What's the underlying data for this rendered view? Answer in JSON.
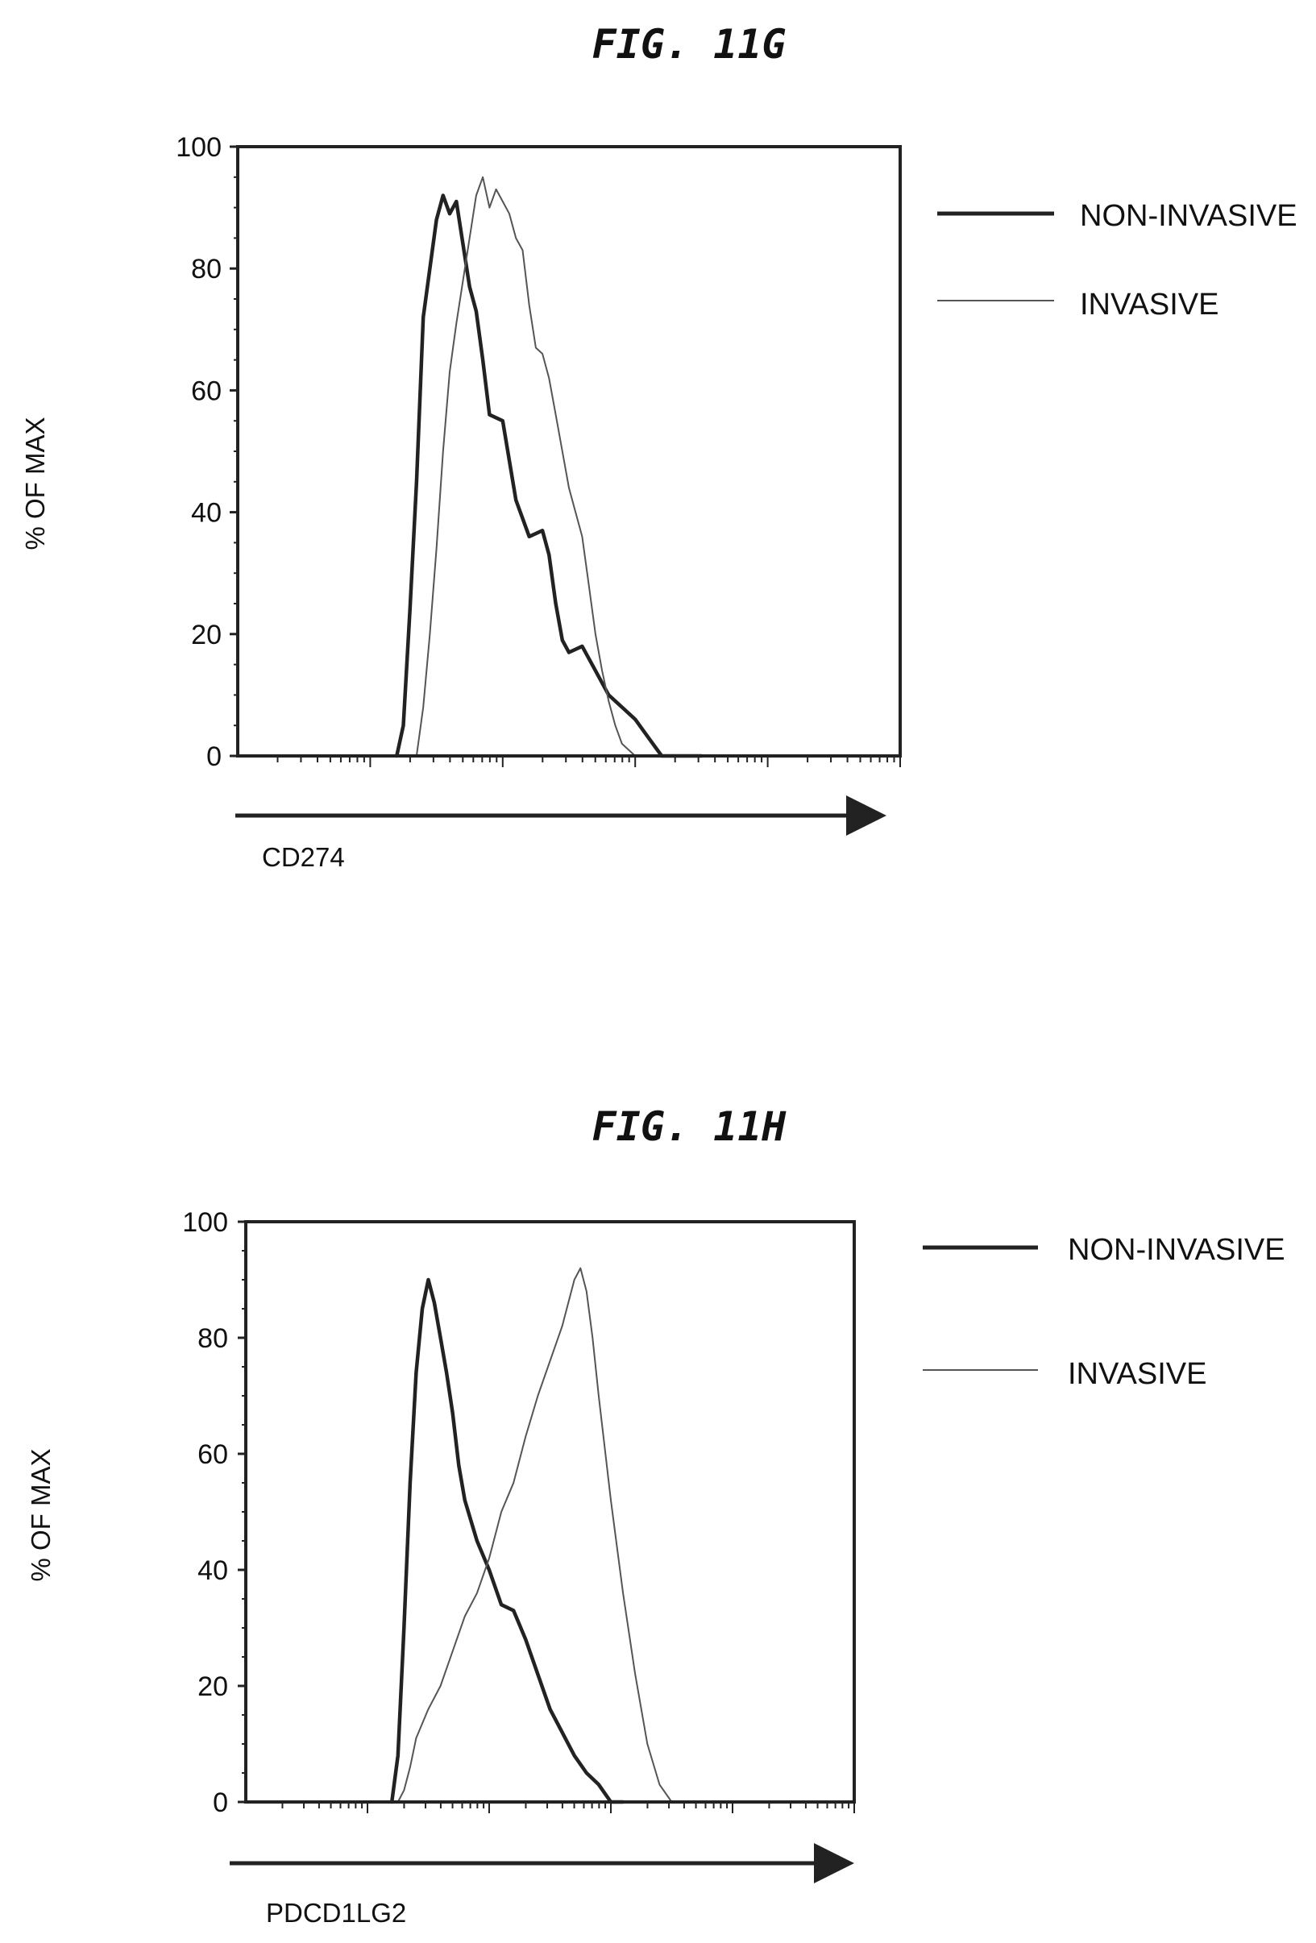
{
  "chart_data": [
    {
      "type": "line",
      "title": "FIG. 11G",
      "xlabel": "CD274",
      "ylabel": "% OF MAX",
      "x_scale": "log",
      "x_range": [
        0,
        100
      ],
      "ylim": [
        0,
        100
      ],
      "yticks": [
        0,
        20,
        40,
        60,
        80,
        100
      ],
      "legend_position": "right",
      "series": [
        {
          "name": "NON-INVASIVE",
          "style": "thick",
          "color": "#222222",
          "x": [
            24,
            25,
            26,
            27,
            28,
            30,
            31,
            32,
            33,
            34,
            35,
            36,
            37,
            38,
            40,
            42,
            44,
            46,
            47,
            48,
            49,
            50,
            52,
            54,
            56,
            58,
            60,
            62,
            64,
            66,
            68,
            70
          ],
          "y": [
            0,
            5,
            24,
            45,
            72,
            88,
            92,
            89,
            91,
            84,
            77,
            73,
            65,
            56,
            55,
            42,
            36,
            37,
            33,
            25,
            19,
            17,
            18,
            14,
            10,
            8,
            6,
            3,
            0,
            0,
            0,
            0
          ]
        },
        {
          "name": "INVASIVE",
          "style": "thin",
          "color": "#555555",
          "x": [
            27,
            28,
            29,
            30,
            31,
            32,
            33,
            34,
            35,
            36,
            37,
            38,
            39,
            40,
            41,
            42,
            43,
            44,
            45,
            46,
            47,
            48,
            49,
            50,
            51,
            52,
            53,
            54,
            55,
            56,
            57,
            58,
            60,
            62,
            64,
            66,
            68,
            70,
            72,
            74,
            76,
            78,
            80
          ],
          "y": [
            0,
            8,
            20,
            34,
            50,
            63,
            71,
            78,
            85,
            92,
            95,
            90,
            93,
            91,
            89,
            85,
            83,
            74,
            67,
            66,
            62,
            56,
            50,
            44,
            40,
            36,
            28,
            20,
            14,
            9,
            5,
            2,
            0,
            0,
            0,
            0,
            0,
            0,
            0,
            0,
            0,
            0,
            0
          ]
        }
      ]
    },
    {
      "type": "line",
      "title": "FIG. 11H",
      "xlabel": "PDCD1LG2",
      "ylabel": "% OF MAX",
      "x_scale": "log",
      "x_range": [
        0,
        100
      ],
      "ylim": [
        0,
        100
      ],
      "yticks": [
        0,
        20,
        40,
        60,
        80,
        100
      ],
      "legend_position": "right",
      "series": [
        {
          "name": "NON-INVASIVE",
          "style": "thick",
          "color": "#222222",
          "x": [
            24,
            25,
            26,
            27,
            28,
            29,
            30,
            31,
            32,
            33,
            34,
            35,
            36,
            38,
            40,
            42,
            44,
            46,
            48,
            50,
            52,
            54,
            56,
            58,
            60,
            62
          ],
          "y": [
            0,
            8,
            30,
            55,
            74,
            85,
            90,
            86,
            80,
            74,
            67,
            58,
            52,
            45,
            40,
            34,
            33,
            28,
            22,
            16,
            12,
            8,
            5,
            3,
            0,
            0
          ],
          "x_note": "",
          "extra_x": [],
          "extra_y": []
        },
        {
          "name": "INVASIVE",
          "style": "thin",
          "color": "#555555",
          "x": [
            25,
            26,
            27,
            28,
            30,
            32,
            34,
            36,
            38,
            40,
            42,
            44,
            46,
            48,
            50,
            52,
            54,
            55,
            56,
            57,
            58,
            60,
            62,
            64,
            66,
            68,
            70
          ],
          "y": [
            0,
            2,
            6,
            11,
            16,
            20,
            26,
            32,
            36,
            42,
            50,
            55,
            63,
            70,
            76,
            82,
            90,
            92,
            88,
            80,
            70,
            52,
            36,
            22,
            10,
            3,
            0
          ]
        }
      ]
    }
  ]
}
